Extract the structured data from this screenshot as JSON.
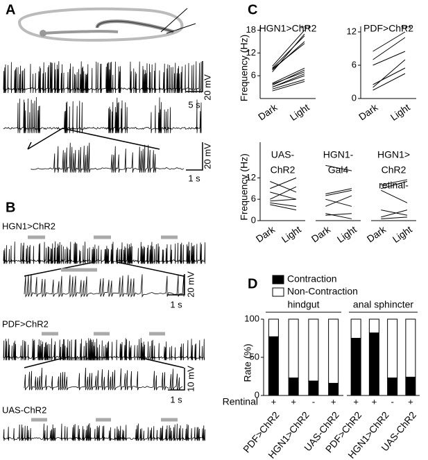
{
  "panel_labels": [
    "A",
    "B",
    "C",
    "D"
  ],
  "panel_a": {
    "scale_bars": [
      "20 mV",
      "5 s",
      "20 mV",
      "1 s"
    ]
  },
  "panel_b": {
    "traces": [
      "HGN1>ChR2",
      "PDF>ChR2",
      "UAS-ChR2"
    ],
    "scale_bars": [
      "20 mV",
      "1 s",
      "10 mV",
      "1 s"
    ]
  },
  "chart_data": [
    {
      "type": "line",
      "title": [
        "HGN1>ChR2"
      ],
      "annotation": "***",
      "categories": [
        "Dark",
        "Light"
      ],
      "ylabel": "Frequency (Hz)",
      "ylim": [
        0,
        19
      ],
      "yticks": [
        6,
        12,
        18
      ],
      "series": [
        {
          "color": "#000",
          "values": [
            7.5,
            15
          ]
        },
        {
          "color": "#000",
          "values": [
            8,
            16.5
          ]
        },
        {
          "color": "#000",
          "values": [
            7,
            17
          ]
        },
        {
          "color": "#000",
          "values": [
            8.5,
            18
          ]
        },
        {
          "color": "#000",
          "values": [
            7.8,
            14.5
          ]
        },
        {
          "color": "#000",
          "values": [
            3,
            6
          ]
        },
        {
          "color": "#000",
          "values": [
            3.5,
            7.5
          ]
        },
        {
          "color": "#000",
          "values": [
            2.5,
            5
          ]
        },
        {
          "color": "#000",
          "values": [
            4,
            8
          ]
        },
        {
          "color": "#000",
          "values": [
            3,
            6.5
          ]
        },
        {
          "color": "#000",
          "values": [
            2,
            4.5
          ]
        },
        {
          "color": "#000",
          "values": [
            3.8,
            7
          ]
        }
      ]
    },
    {
      "type": "line",
      "title": [
        "PDF>ChR2"
      ],
      "annotation": "***",
      "categories": [
        "Dark",
        "Light"
      ],
      "ylim": [
        0,
        13
      ],
      "yticks": [
        0,
        6,
        12
      ],
      "series": [
        {
          "color": "#000",
          "values": [
            8.5,
            12
          ]
        },
        {
          "color": "#000",
          "values": [
            7,
            11
          ]
        },
        {
          "color": "#000",
          "values": [
            6,
            8.5
          ]
        },
        {
          "color": "#000",
          "values": [
            2,
            7
          ]
        },
        {
          "color": "#000",
          "values": [
            1.5,
            4.5
          ]
        },
        {
          "color": "#000",
          "values": [
            2.5,
            5.5
          ]
        }
      ]
    },
    {
      "type": "line",
      "title": [
        "UAS-",
        "ChR2"
      ],
      "categories": [
        "Dark",
        "Light"
      ],
      "ylabel": "Frequency (Hz)",
      "ylim": [
        0,
        22
      ],
      "yticks": [
        0,
        6,
        12
      ],
      "series": [
        {
          "color": "#000",
          "values": [
            11,
            8
          ]
        },
        {
          "color": "#000",
          "values": [
            9,
            12
          ]
        },
        {
          "color": "#000",
          "values": [
            8,
            6
          ]
        },
        {
          "color": "#000",
          "values": [
            6,
            9.5
          ]
        },
        {
          "color": "#000",
          "values": [
            5,
            4
          ]
        },
        {
          "color": "#000",
          "values": [
            5.5,
            6
          ]
        },
        {
          "color": "#000",
          "values": [
            4.5,
            3
          ]
        }
      ]
    },
    {
      "type": "line",
      "title": [
        "HGN1-",
        "Gal4"
      ],
      "categories": [
        "Dark",
        "Light"
      ],
      "ylim": [
        0,
        22
      ],
      "series": [
        {
          "color": "#000",
          "values": [
            15.5,
            14
          ]
        },
        {
          "color": "#000",
          "values": [
            7.5,
            9
          ]
        },
        {
          "color": "#000",
          "values": [
            7,
            8.5
          ]
        },
        {
          "color": "#000",
          "values": [
            6,
            4
          ]
        },
        {
          "color": "#000",
          "values": [
            4,
            7
          ]
        },
        {
          "color": "#000",
          "values": [
            2,
            0.5
          ]
        },
        {
          "color": "#000",
          "values": [
            1.5,
            2
          ]
        }
      ]
    },
    {
      "type": "line",
      "title": [
        "HGN1>",
        "ChR2",
        "retinal-"
      ],
      "categories": [
        "Dark",
        "Light"
      ],
      "ylim": [
        0,
        22
      ],
      "series": [
        {
          "color": "#000",
          "values": [
            10,
            11.5
          ]
        },
        {
          "color": "#000",
          "values": [
            9,
            11
          ]
        },
        {
          "color": "#000",
          "values": [
            8.5,
            5
          ]
        },
        {
          "color": "#000",
          "values": [
            3,
            1.5
          ]
        },
        {
          "color": "#000",
          "values": [
            1,
            3
          ]
        },
        {
          "color": "#000",
          "values": [
            0.5,
            1
          ]
        }
      ]
    },
    {
      "type": "bar",
      "stacked": true,
      "title": "hindgut",
      "ylabel": "Rate (%)",
      "ylim": [
        0,
        100
      ],
      "yticks": [
        0,
        50,
        100
      ],
      "categories": [
        "PDF>ChR2",
        "HGN1>ChR2",
        null,
        "UAS-ChR2"
      ],
      "row_label": "Rentinal",
      "retinal": [
        "+",
        "+",
        "-",
        "+"
      ],
      "series": [
        {
          "name": "Contraction",
          "color": "#000",
          "values": [
            77,
            23,
            19,
            16
          ]
        },
        {
          "name": "Non-Contraction",
          "color": "#fff",
          "values": [
            23,
            77,
            81,
            84
          ]
        }
      ]
    },
    {
      "type": "bar",
      "stacked": true,
      "title": "anal sphincter",
      "ylim": [
        0,
        100
      ],
      "categories": [
        "PDF>ChR2",
        "HGN1>ChR2",
        null,
        "UAS-ChR2"
      ],
      "retinal": [
        "+",
        "+",
        "-",
        "+"
      ],
      "series": [
        {
          "color": "#000",
          "values": [
            75,
            82,
            23,
            24
          ]
        },
        {
          "color": "#fff",
          "values": [
            25,
            18,
            77,
            76
          ]
        }
      ]
    }
  ]
}
